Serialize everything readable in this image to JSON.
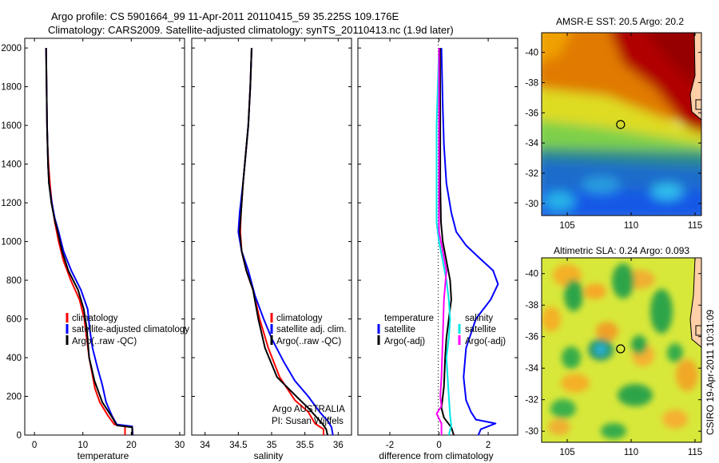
{
  "title": {
    "line1": "Argo profile: CS 5901664_99 11-Apr-2011 20110415_59 35.225S 109.176E",
    "line2": "Climatology: CARS2009. Satellite-adjusted climatology: synTS_20110413.nc (1.9d later)"
  },
  "footer": {
    "credit": "CSIRO 19-Apr-2011 10:31:09",
    "argo": "Argo AUSTRALIA",
    "pi": "PI: Susan Wijffels"
  },
  "colors": {
    "climatology": "#ff0000",
    "satellite": "#0000ff",
    "argo": "#000000",
    "sal_sat": "#00e5e5",
    "sal_argo": "#ff00ff"
  },
  "chart_data": [
    {
      "type": "line",
      "xlabel": "temperature",
      "ylabel": "",
      "xlim": [
        -2,
        31
      ],
      "ylim": [
        2050,
        0
      ],
      "xticks": [
        0,
        10,
        20,
        30
      ],
      "yticks": [
        0,
        200,
        400,
        600,
        800,
        1000,
        1200,
        1400,
        1600,
        1800,
        2000
      ],
      "legend": [
        "climatology",
        "satellite-adjusted climatology",
        "Argo(..raw -QC)"
      ],
      "series": [
        {
          "name": "climatology",
          "color": "climatology",
          "points": [
            [
              18.7,
              0
            ],
            [
              18.7,
              45
            ],
            [
              16.5,
              55
            ],
            [
              15.2,
              100
            ],
            [
              13.5,
              170
            ],
            [
              12.5,
              240
            ],
            [
              11.3,
              400
            ],
            [
              10.3,
              600
            ],
            [
              9.3,
              700
            ],
            [
              7.5,
              800
            ],
            [
              6.0,
              900
            ],
            [
              5.0,
              1000
            ],
            [
              4.2,
              1100
            ],
            [
              3.6,
              1200
            ],
            [
              3.2,
              1300
            ],
            [
              2.9,
              1400
            ],
            [
              2.7,
              1500
            ],
            [
              2.6,
              1600
            ],
            [
              2.5,
              1800
            ],
            [
              2.4,
              2000
            ]
          ]
        },
        {
          "name": "satellite-adjusted climatology",
          "color": "satellite",
          "points": [
            [
              20.3,
              0
            ],
            [
              20.2,
              45
            ],
            [
              17.0,
              55
            ],
            [
              16.0,
              100
            ],
            [
              14.8,
              170
            ],
            [
              14.0,
              260
            ],
            [
              13.0,
              350
            ],
            [
              12.0,
              450
            ],
            [
              11.4,
              550
            ],
            [
              11.0,
              650
            ],
            [
              9.6,
              750
            ],
            [
              7.6,
              850
            ],
            [
              6.0,
              950
            ],
            [
              5.0,
              1050
            ],
            [
              4.2,
              1120
            ],
            [
              3.6,
              1200
            ],
            [
              3.0,
              1300
            ],
            [
              2.8,
              1400
            ],
            [
              2.6,
              1600
            ],
            [
              2.5,
              1800
            ],
            [
              2.4,
              2000
            ]
          ]
        },
        {
          "name": "Argo(..raw -QC)",
          "color": "argo",
          "points": [
            [
              20.2,
              0
            ],
            [
              20.2,
              40
            ],
            [
              17.0,
              50
            ],
            [
              16.1,
              90
            ],
            [
              14.0,
              170
            ],
            [
              12.4,
              280
            ],
            [
              11.3,
              400
            ],
            [
              10.8,
              550
            ],
            [
              10.2,
              650
            ],
            [
              9.0,
              750
            ],
            [
              7.0,
              850
            ],
            [
              5.7,
              950
            ],
            [
              4.8,
              1050
            ],
            [
              4.1,
              1120
            ],
            [
              3.5,
              1200
            ],
            [
              3.0,
              1300
            ],
            [
              2.8,
              1400
            ],
            [
              2.6,
              1600
            ],
            [
              2.5,
              1800
            ],
            [
              2.4,
              2000
            ]
          ]
        }
      ]
    },
    {
      "type": "line",
      "xlabel": "salinity",
      "xlim": [
        33.8,
        36.2
      ],
      "ylim": [
        2050,
        0
      ],
      "xticks": [
        34,
        34.5,
        35,
        35.5,
        36
      ],
      "xticklabels": [
        "34",
        "34.5",
        "35",
        "35.5",
        "36"
      ],
      "yticks": [
        0,
        200,
        400,
        600,
        800,
        1000,
        1200,
        1400,
        1600,
        1800,
        2000
      ],
      "legend": [
        "climatology",
        "satellite adj. clim.",
        "Argo(..raw -QC)"
      ],
      "series": [
        {
          "name": "climatology",
          "color": "climatology",
          "points": [
            [
              35.78,
              0
            ],
            [
              35.78,
              30
            ],
            [
              35.65,
              60
            ],
            [
              35.55,
              120
            ],
            [
              35.35,
              180
            ],
            [
              35.12,
              300
            ],
            [
              34.95,
              450
            ],
            [
              34.82,
              600
            ],
            [
              34.72,
              750
            ],
            [
              34.62,
              850
            ],
            [
              34.55,
              950
            ],
            [
              34.53,
              1050
            ],
            [
              34.54,
              1150
            ],
            [
              34.57,
              1300
            ],
            [
              34.61,
              1450
            ],
            [
              34.65,
              1600
            ],
            [
              34.68,
              1800
            ],
            [
              34.7,
              2000
            ]
          ]
        },
        {
          "name": "satellite adj. clim.",
          "color": "satellite",
          "points": [
            [
              35.92,
              0
            ],
            [
              35.9,
              40
            ],
            [
              35.85,
              70
            ],
            [
              35.72,
              120
            ],
            [
              35.55,
              200
            ],
            [
              35.35,
              280
            ],
            [
              35.18,
              380
            ],
            [
              35.0,
              500
            ],
            [
              34.88,
              600
            ],
            [
              34.75,
              720
            ],
            [
              34.65,
              850
            ],
            [
              34.55,
              950
            ],
            [
              34.5,
              1050
            ],
            [
              34.52,
              1150
            ],
            [
              34.57,
              1300
            ],
            [
              34.61,
              1450
            ],
            [
              34.65,
              1600
            ],
            [
              34.68,
              1800
            ],
            [
              34.7,
              2000
            ]
          ]
        },
        {
          "name": "Argo(..raw -QC)",
          "color": "argo",
          "points": [
            [
              35.84,
              0
            ],
            [
              35.82,
              30
            ],
            [
              35.76,
              60
            ],
            [
              35.55,
              140
            ],
            [
              35.4,
              190
            ],
            [
              35.08,
              300
            ],
            [
              34.9,
              450
            ],
            [
              34.8,
              600
            ],
            [
              34.72,
              750
            ],
            [
              34.62,
              850
            ],
            [
              34.55,
              950
            ],
            [
              34.52,
              1050
            ],
            [
              34.54,
              1150
            ],
            [
              34.57,
              1300
            ],
            [
              34.61,
              1450
            ],
            [
              34.65,
              1600
            ],
            [
              34.68,
              1800
            ],
            [
              34.7,
              2000
            ]
          ]
        }
      ]
    },
    {
      "type": "line",
      "xlabel": "difference from climatology",
      "xlim": [
        -3.3,
        3.2
      ],
      "ylim": [
        2050,
        0
      ],
      "xticks": [
        -2,
        0,
        2
      ],
      "yticks": [
        0,
        200,
        400,
        600,
        800,
        1000,
        1200,
        1400,
        1600,
        1800,
        2000
      ],
      "legend_titles": [
        "temperature",
        "salinity"
      ],
      "legend": [
        "satellite",
        "Argo(-adj)",
        "satellite",
        "Argo(-adj)"
      ],
      "series": [
        {
          "name": "satellite",
          "color": "satellite",
          "points": [
            [
              1.6,
              0
            ],
            [
              1.7,
              30
            ],
            [
              2.3,
              60
            ],
            [
              1.5,
              80
            ],
            [
              1.3,
              120
            ],
            [
              1.1,
              180
            ],
            [
              1.0,
              300
            ],
            [
              1.1,
              450
            ],
            [
              1.5,
              600
            ],
            [
              2.1,
              700
            ],
            [
              2.4,
              780
            ],
            [
              2.2,
              850
            ],
            [
              1.6,
              920
            ],
            [
              1.1,
              980
            ],
            [
              0.7,
              1050
            ],
            [
              0.5,
              1150
            ],
            [
              0.3,
              1300
            ],
            [
              0.2,
              1500
            ],
            [
              0.15,
              1700
            ],
            [
              0.1,
              2000
            ]
          ]
        },
        {
          "name": "Argo(-adj)",
          "color": "argo",
          "points": [
            [
              0.6,
              0
            ],
            [
              0.5,
              40
            ],
            [
              0.2,
              90
            ],
            [
              0.1,
              140
            ],
            [
              0.2,
              250
            ],
            [
              0.25,
              400
            ],
            [
              0.3,
              500
            ],
            [
              0.4,
              600
            ],
            [
              0.5,
              700
            ],
            [
              0.45,
              800
            ],
            [
              0.3,
              900
            ],
            [
              0.15,
              1000
            ],
            [
              0.08,
              1100
            ],
            [
              0.05,
              1300
            ],
            [
              0.05,
              1600
            ],
            [
              0.04,
              2000
            ]
          ]
        },
        {
          "name": "satellite",
          "color": "sal_sat",
          "points": [
            [
              0.4,
              0
            ],
            [
              0.5,
              50
            ],
            [
              0.45,
              100
            ],
            [
              0.4,
              200
            ],
            [
              0.35,
              300
            ],
            [
              0.3,
              400
            ],
            [
              0.4,
              500
            ],
            [
              0.45,
              600
            ],
            [
              0.4,
              700
            ],
            [
              0.3,
              800
            ],
            [
              0.15,
              900
            ],
            [
              0.0,
              1000
            ],
            [
              -0.1,
              1100
            ],
            [
              -0.1,
              1200
            ],
            [
              -0.1,
              1400
            ],
            [
              -0.1,
              1600
            ],
            [
              -0.05,
              1800
            ],
            [
              0.0,
              2000
            ]
          ]
        },
        {
          "name": "Argo(-adj)",
          "color": "sal_argo",
          "points": [
            [
              0.1,
              0
            ],
            [
              0.1,
              60
            ],
            [
              -0.1,
              110
            ],
            [
              0.1,
              150
            ],
            [
              0.05,
              200
            ],
            [
              0.1,
              300
            ],
            [
              0.15,
              500
            ],
            [
              0.2,
              700
            ],
            [
              0.3,
              850
            ],
            [
              0.15,
              950
            ],
            [
              0.0,
              1050
            ],
            [
              0.0,
              1500
            ],
            [
              0.0,
              2000
            ]
          ]
        }
      ]
    },
    {
      "type": "heatmap",
      "title": "AMSR-E SST: 20.5 Argo: 20.2",
      "xlim": [
        103,
        115.5
      ],
      "ylim": [
        -41.3,
        -29.2
      ],
      "xticks": [
        105,
        110,
        115
      ],
      "yticks": [
        -30,
        -32,
        -34,
        -36,
        -38,
        -40
      ],
      "marker": {
        "lon": 109.176,
        "lat": -35.225
      }
    },
    {
      "type": "heatmap",
      "title": "Altimetric SLA: 0.24 Argo: 0.093",
      "xlim": [
        103,
        115.5
      ],
      "ylim": [
        -41.0,
        -29.3
      ],
      "xticks": [
        105,
        110,
        115
      ],
      "yticks": [
        -30,
        -32,
        -34,
        -36,
        -38,
        -40
      ],
      "marker": {
        "lon": 109.176,
        "lat": -35.225
      }
    }
  ]
}
